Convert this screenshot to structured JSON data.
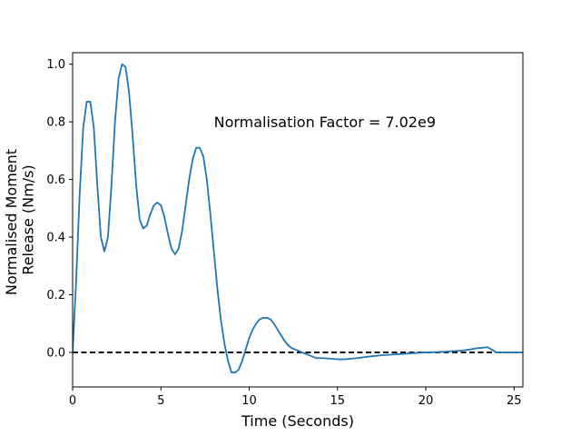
{
  "chart_data": {
    "type": "line",
    "xlabel": "Time (Seconds)",
    "ylabel_lines": [
      "Normalised Moment",
      "Release (Nm/s)"
    ],
    "xlim": [
      0,
      25.5
    ],
    "ylim": [
      -0.12,
      1.04
    ],
    "x_ticks": [
      0,
      5,
      10,
      15,
      20,
      25
    ],
    "x_tick_labels": [
      "0",
      "5",
      "10",
      "15",
      "20",
      "25"
    ],
    "y_ticks": [
      0.0,
      0.2,
      0.4,
      0.6,
      0.8,
      1.0
    ],
    "y_tick_labels": [
      "0.0",
      "0.2",
      "0.4",
      "0.6",
      "0.8",
      "1.0"
    ],
    "annotation": {
      "text": "Normalisation Factor = 7.02e9",
      "x": 8.0,
      "y": 0.8
    },
    "reference_line": {
      "y": 0.0,
      "style": "dashed",
      "color": "#000000"
    },
    "grid": false,
    "series": [
      {
        "color": "#1f77b4",
        "x": [
          0,
          0.2,
          0.4,
          0.6,
          0.8,
          1.0,
          1.2,
          1.4,
          1.6,
          1.8,
          2.0,
          2.2,
          2.4,
          2.6,
          2.8,
          3.0,
          3.2,
          3.4,
          3.6,
          3.8,
          4.0,
          4.2,
          4.4,
          4.6,
          4.8,
          5.0,
          5.2,
          5.4,
          5.6,
          5.8,
          6.0,
          6.2,
          6.4,
          6.6,
          6.8,
          7.0,
          7.2,
          7.4,
          7.6,
          7.8,
          8.0,
          8.2,
          8.4,
          8.6,
          8.8,
          9.0,
          9.2,
          9.4,
          9.6,
          9.8,
          10.0,
          10.2,
          10.4,
          10.6,
          10.8,
          11.0,
          11.2,
          11.4,
          11.6,
          11.8,
          12.0,
          12.2,
          12.4,
          12.6,
          12.8,
          13.0,
          13.2,
          13.4,
          13.6,
          13.8,
          14.0,
          14.2,
          14.4,
          14.6,
          14.8,
          15.0,
          15.4,
          15.8,
          16.2,
          16.6,
          17.0,
          17.5,
          18.0,
          18.5,
          19.0,
          19.5,
          20.0,
          20.5,
          21.0,
          21.5,
          22.0,
          22.5,
          23.0,
          23.5,
          24.0,
          24.5,
          25.0,
          25.5
        ],
        "y": [
          0.0,
          0.25,
          0.55,
          0.78,
          0.87,
          0.87,
          0.78,
          0.58,
          0.4,
          0.35,
          0.4,
          0.58,
          0.8,
          0.95,
          1.0,
          0.99,
          0.9,
          0.75,
          0.58,
          0.46,
          0.43,
          0.44,
          0.48,
          0.51,
          0.52,
          0.51,
          0.47,
          0.41,
          0.36,
          0.34,
          0.36,
          0.42,
          0.51,
          0.6,
          0.67,
          0.71,
          0.71,
          0.68,
          0.6,
          0.48,
          0.35,
          0.22,
          0.11,
          0.03,
          -0.03,
          -0.07,
          -0.07,
          -0.06,
          -0.03,
          0.01,
          0.05,
          0.08,
          0.1,
          0.115,
          0.12,
          0.12,
          0.115,
          0.1,
          0.08,
          0.06,
          0.04,
          0.025,
          0.015,
          0.01,
          0.005,
          0.0,
          -0.005,
          -0.01,
          -0.015,
          -0.02,
          -0.02,
          -0.02,
          -0.021,
          -0.022,
          -0.023,
          -0.024,
          -0.024,
          -0.022,
          -0.019,
          -0.016,
          -0.013,
          -0.01,
          -0.008,
          -0.006,
          -0.004,
          -0.002,
          0.0,
          0.001,
          0.002,
          0.004,
          0.006,
          0.01,
          0.015,
          0.018,
          0.0,
          0.0,
          0.0,
          0.0
        ]
      }
    ]
  }
}
